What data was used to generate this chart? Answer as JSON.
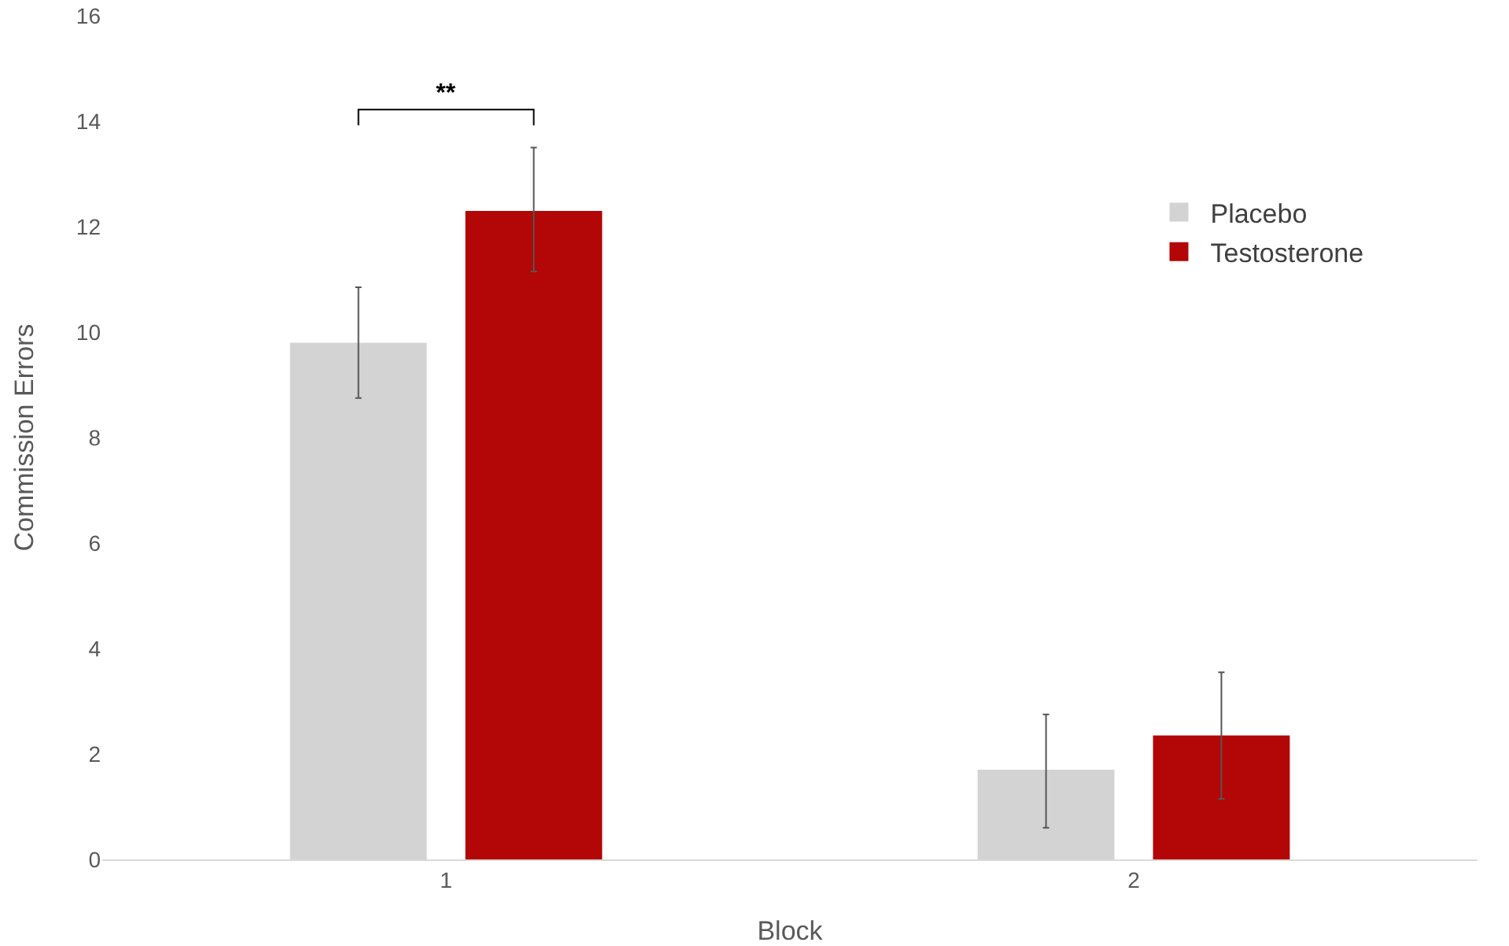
{
  "chart_data": {
    "type": "bar",
    "xlabel": "Block",
    "ylabel": "Commission Errors",
    "categories": [
      "1",
      "2"
    ],
    "series": [
      {
        "name": "Placebo",
        "color": "#d3d3d3",
        "values": [
          9.8,
          1.7
        ],
        "errors": [
          [
            8.75,
            10.85
          ],
          [
            0.6,
            2.75
          ]
        ]
      },
      {
        "name": "Testosterone",
        "color": "#b30606",
        "values": [
          12.3,
          2.35
        ],
        "errors": [
          [
            11.15,
            13.5
          ],
          [
            1.15,
            3.55
          ]
        ]
      }
    ],
    "ylim": [
      0,
      16
    ],
    "yticks": [
      0,
      2,
      4,
      6,
      8,
      10,
      12,
      14,
      16
    ],
    "grid": false,
    "legend": "right",
    "annotations": [
      "**"
    ]
  }
}
